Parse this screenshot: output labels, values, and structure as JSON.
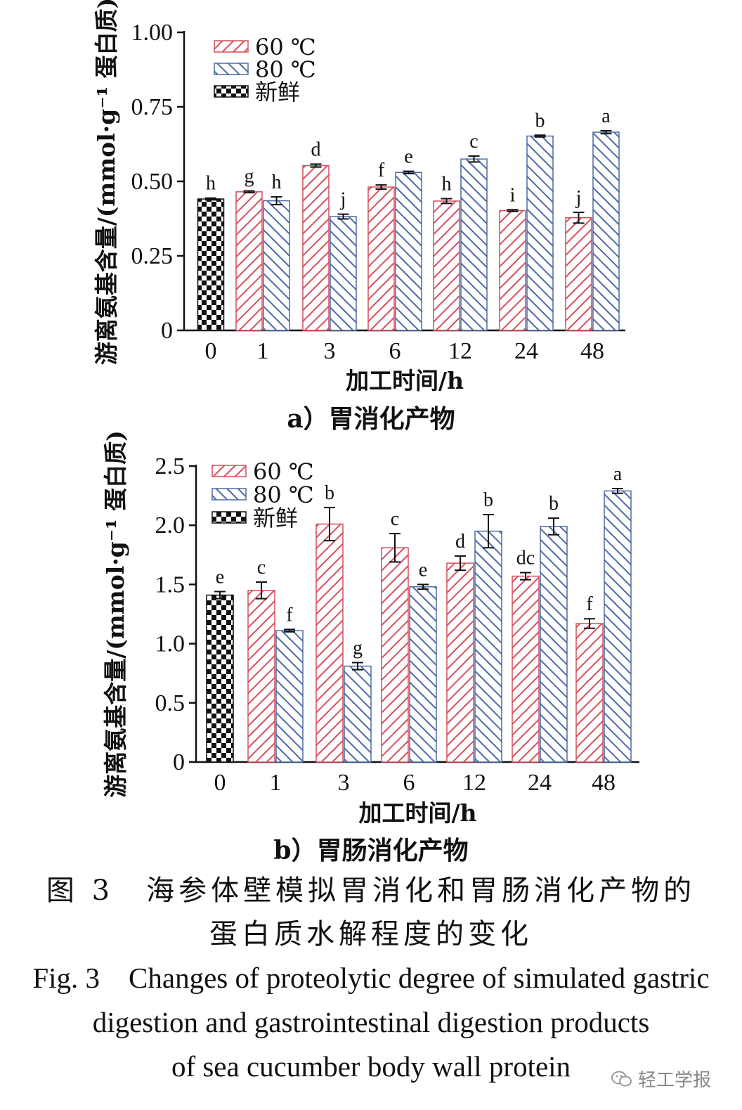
{
  "chart_data": [
    {
      "type": "bar",
      "subtitle": "a）胃消化产物",
      "ylabel": "游离氨基含量/(mmol·g⁻¹ 蛋白质)",
      "xlabel": "加工时间/h",
      "categories": [
        "0",
        "1",
        "3",
        "6",
        "12",
        "24",
        "48"
      ],
      "ylim": [
        0,
        1.0
      ],
      "yticks": [
        0,
        0.25,
        0.5,
        0.75,
        1.0
      ],
      "ytick_labels": [
        "0",
        "0.25",
        "0.50",
        "0.75",
        "1.00"
      ],
      "legend_position": "top-left",
      "series": [
        {
          "name": "60 ℃",
          "pattern": "hatch-red",
          "values": [
            null,
            0.465,
            0.553,
            0.481,
            0.434,
            0.402,
            0.378
          ],
          "errors": [
            null,
            0.003,
            0.005,
            0.007,
            0.008,
            0.003,
            0.018
          ],
          "labels": [
            "",
            "g",
            "d",
            "f",
            "h",
            "i",
            "j"
          ]
        },
        {
          "name": "80 ℃",
          "pattern": "hatch-blue",
          "values": [
            null,
            0.435,
            0.382,
            0.53,
            0.575,
            0.652,
            0.665
          ],
          "errors": [
            null,
            0.013,
            0.008,
            0.004,
            0.01,
            0.003,
            0.005
          ],
          "labels": [
            "",
            "h",
            "j",
            "e",
            "c",
            "b",
            "a"
          ]
        },
        {
          "name": "新鲜",
          "pattern": "checker",
          "values": [
            0.441,
            null,
            null,
            null,
            null,
            null,
            null
          ],
          "errors": [
            0.003,
            null,
            null,
            null,
            null,
            null,
            null
          ],
          "labels": [
            "h",
            "",
            "",
            "",
            "",
            "",
            ""
          ]
        }
      ]
    },
    {
      "type": "bar",
      "subtitle": "b）胃肠消化产物",
      "ylabel": "游离氨基含量/(mmol·g⁻¹ 蛋白质)",
      "xlabel": "加工时间/h",
      "categories": [
        "0",
        "1",
        "3",
        "6",
        "12",
        "24",
        "48"
      ],
      "ylim": [
        0,
        2.5
      ],
      "yticks": [
        0,
        0.5,
        1.0,
        1.5,
        2.0,
        2.5
      ],
      "ytick_labels": [
        "0",
        "0.5",
        "1.0",
        "1.5",
        "2.0",
        "2.5"
      ],
      "legend_position": "top-left",
      "series": [
        {
          "name": "60 ℃",
          "pattern": "hatch-red",
          "values": [
            null,
            1.45,
            2.01,
            1.81,
            1.68,
            1.57,
            1.17
          ],
          "errors": [
            null,
            0.07,
            0.14,
            0.12,
            0.06,
            0.03,
            0.04
          ],
          "labels": [
            "",
            "c",
            "b",
            "c",
            "d",
            "dc",
            "f"
          ]
        },
        {
          "name": "80 ℃",
          "pattern": "hatch-blue",
          "values": [
            null,
            1.11,
            0.81,
            1.48,
            1.95,
            1.99,
            2.29
          ],
          "errors": [
            null,
            0.01,
            0.03,
            0.02,
            0.14,
            0.07,
            0.02
          ],
          "labels": [
            "",
            "f",
            "g",
            "e",
            "b",
            "b",
            "a"
          ]
        },
        {
          "name": "新鲜",
          "pattern": "checker",
          "values": [
            1.41,
            null,
            null,
            null,
            null,
            null,
            null
          ],
          "errors": [
            0.03,
            null,
            null,
            null,
            null,
            null,
            null
          ],
          "labels": [
            "e",
            "",
            "",
            "",
            "",
            "",
            ""
          ]
        }
      ]
    }
  ],
  "colors": {
    "red": "#d64f5c",
    "blue": "#4e6aa6",
    "black": "#111111"
  },
  "caption": {
    "zh_line1": "图 3　海参体壁模拟胃消化和胃肠消化产物的",
    "zh_line2": "蛋白质水解程度的变化",
    "en_line1": "Fig. 3　Changes of proteolytic degree of simulated gastric",
    "en_line2": "digestion and gastrointestinal digestion products",
    "en_line3": "of sea cucumber body wall protein"
  },
  "watermark": {
    "icon": "wechat-icon",
    "text": "轻工学报"
  }
}
